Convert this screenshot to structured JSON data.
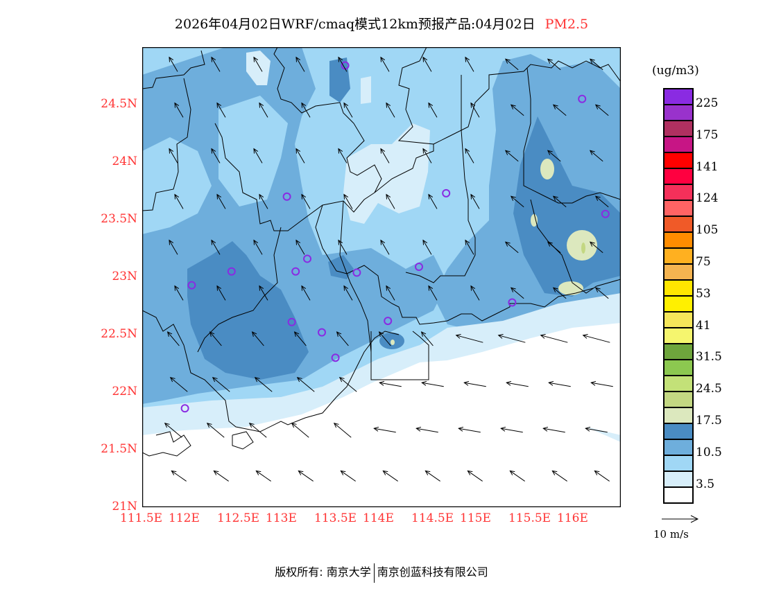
{
  "title": {
    "main": "2026年04月02日WRF/cmaq模式12km预报产品:04月02日",
    "species": "PM2.5"
  },
  "axes": {
    "x_ticks": [
      "111.5E",
      "112E",
      "112.5E",
      "113E",
      "113.5E",
      "114E",
      "114.5E",
      "115E",
      "115.5E",
      "116E"
    ],
    "x_values": [
      111.5,
      112,
      112.5,
      113,
      113.5,
      114,
      114.5,
      115,
      115.5,
      116
    ],
    "y_ticks": [
      "21N",
      "21.5N",
      "22N",
      "22.5N",
      "23N",
      "23.5N",
      "24N",
      "24.5N"
    ],
    "y_values": [
      21,
      21.5,
      22,
      22.5,
      23,
      23.5,
      24,
      24.5
    ],
    "lon_range": [
      111.5,
      116.43
    ],
    "lat_range": [
      21,
      25
    ]
  },
  "colorbar": {
    "unit": "(ug/m3)",
    "colors": [
      "#8a2be2",
      "#9932cc",
      "#b03060",
      "#c71585",
      "#ff0000",
      "#ff0040",
      "#f5305a",
      "#ff6464",
      "#f05a28",
      "#ff8c00",
      "#ffb020",
      "#f5b450",
      "#ffe600",
      "#fff000",
      "#f5e65a",
      "#f5f56e",
      "#6ea53c",
      "#8cc850",
      "#c3e178",
      "#c3d782",
      "#dce8be",
      "#4a8cc3",
      "#6eaedc",
      "#a0d7f5",
      "#d7eefa",
      "#ffffff"
    ],
    "labels": [
      "225",
      "175",
      "141",
      "124",
      "105",
      "75",
      "53",
      "41",
      "31.5",
      "24.5",
      "17.5",
      "10.5",
      "3.5"
    ]
  },
  "wind_reference": "10 m/s",
  "stations": [
    [
      113.59,
      24.84
    ],
    [
      116.03,
      24.55
    ],
    [
      112.99,
      23.7
    ],
    [
      114.63,
      23.73
    ],
    [
      116.27,
      23.55
    ],
    [
      112.42,
      23.05
    ],
    [
      112.01,
      22.93
    ],
    [
      113.2,
      23.16
    ],
    [
      113.08,
      23.05
    ],
    [
      113.71,
      23.04
    ],
    [
      114.35,
      23.09
    ],
    [
      113.04,
      22.61
    ],
    [
      113.35,
      22.52
    ],
    [
      114.03,
      22.62
    ],
    [
      115.31,
      22.78
    ],
    [
      113.49,
      22.3
    ],
    [
      111.94,
      21.86
    ]
  ],
  "station_color": "#8a2be2",
  "footer": {
    "left": "版权所有: 南京大学",
    "right": "南京创蓝科技有限公司"
  }
}
